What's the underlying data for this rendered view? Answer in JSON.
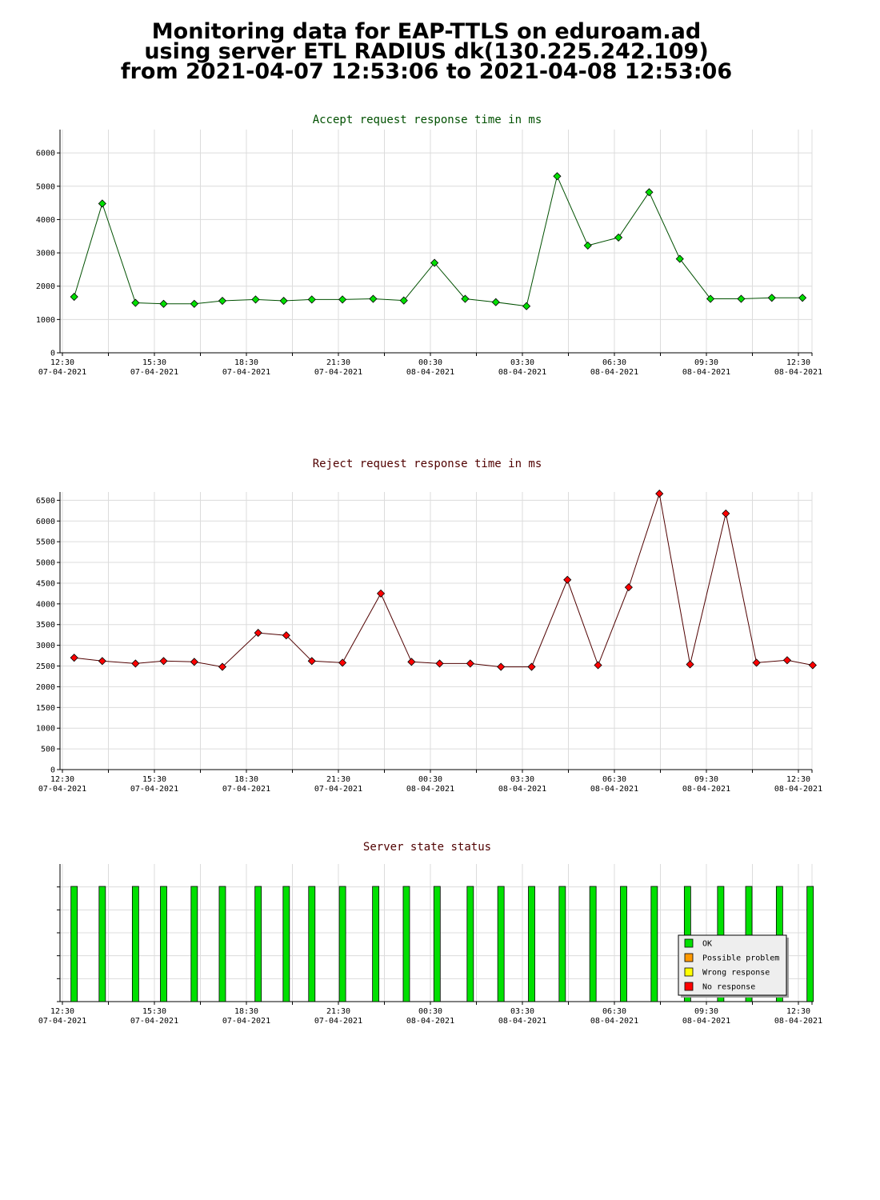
{
  "header": {
    "line1": "Monitoring data for EAP-TTLS on eduroam.ad",
    "line2": "using server ETL RADIUS dk(130.225.242.109)",
    "line3": "from 2021-04-07 12:53:06 to 2021-04-08 12:53:06"
  },
  "x_ticks": [
    {
      "time": "12:30",
      "date": "07-04-2021"
    },
    {
      "time": "15:30",
      "date": "07-04-2021"
    },
    {
      "time": "18:30",
      "date": "07-04-2021"
    },
    {
      "time": "21:30",
      "date": "07-04-2021"
    },
    {
      "time": "00:30",
      "date": "08-04-2021"
    },
    {
      "time": "03:30",
      "date": "08-04-2021"
    },
    {
      "time": "06:30",
      "date": "08-04-2021"
    },
    {
      "time": "09:30",
      "date": "08-04-2021"
    },
    {
      "time": "12:30",
      "date": "08-04-2021"
    }
  ],
  "chart_data": [
    {
      "type": "line",
      "title": "Accept request response time in ms",
      "colors": {
        "title": "#005000",
        "line": "#005000",
        "marker": "#00e000"
      },
      "x": [
        "2021-04-07 12:53",
        "2021-04-07 13:48",
        "2021-04-07 14:53",
        "2021-04-07 15:48",
        "2021-04-07 16:48",
        "2021-04-07 17:43",
        "2021-04-07 18:48",
        "2021-04-07 19:43",
        "2021-04-07 20:38",
        "2021-04-07 21:38",
        "2021-04-07 22:38",
        "2021-04-07 23:38",
        "2021-04-08 00:38",
        "2021-04-08 01:38",
        "2021-04-08 02:38",
        "2021-04-08 03:38",
        "2021-04-08 04:38",
        "2021-04-08 05:38",
        "2021-04-08 06:38",
        "2021-04-08 07:38",
        "2021-04-08 08:38",
        "2021-04-08 09:38",
        "2021-04-08 10:38",
        "2021-04-08 11:38",
        "2021-04-08 12:38"
      ],
      "values": [
        1680,
        4480,
        1500,
        1470,
        1470,
        1560,
        1600,
        1560,
        1600,
        1600,
        1620,
        1570,
        2700,
        1620,
        1520,
        1400,
        5300,
        3220,
        3460,
        4820,
        2820,
        1620,
        1620,
        1650,
        1650
      ],
      "ylim": [
        0,
        6700
      ],
      "y_ticks": [
        0,
        1000,
        2000,
        3000,
        4000,
        5000,
        6000
      ],
      "grid": true
    },
    {
      "type": "line",
      "title": "Reject request response time in ms",
      "colors": {
        "title": "#500000",
        "line": "#500000",
        "marker": "#ff0000"
      },
      "x": [
        "2021-04-07 12:53",
        "2021-04-07 13:48",
        "2021-04-07 14:53",
        "2021-04-07 15:48",
        "2021-04-07 16:48",
        "2021-04-07 17:43",
        "2021-04-07 18:53",
        "2021-04-07 19:48",
        "2021-04-07 20:38",
        "2021-04-07 21:38",
        "2021-04-07 22:53",
        "2021-04-07 23:53",
        "2021-04-08 00:48",
        "2021-04-08 01:48",
        "2021-04-08 02:48",
        "2021-04-08 03:48",
        "2021-04-08 04:58",
        "2021-04-08 05:58",
        "2021-04-08 06:58",
        "2021-04-08 07:58",
        "2021-04-08 08:58",
        "2021-04-08 10:08",
        "2021-04-08 11:08",
        "2021-04-08 12:08",
        "2021-04-08 12:58"
      ],
      "values": [
        2700,
        2620,
        2560,
        2620,
        2600,
        2480,
        3300,
        3240,
        2620,
        2580,
        4250,
        2600,
        2560,
        2560,
        2480,
        2480,
        4580,
        2520,
        4400,
        6660,
        2540,
        6180,
        2580,
        2640,
        2520
      ],
      "ylim": [
        0,
        6700
      ],
      "y_ticks": [
        0,
        500,
        1000,
        1500,
        2000,
        2500,
        3000,
        3500,
        4000,
        4500,
        5000,
        5500,
        6000,
        6500
      ],
      "grid": true
    },
    {
      "type": "bar",
      "title": "Server state status",
      "colors": {
        "title": "#500000"
      },
      "x": [
        "2021-04-07 12:53",
        "2021-04-07 13:48",
        "2021-04-07 14:53",
        "2021-04-07 15:48",
        "2021-04-07 16:48",
        "2021-04-07 17:43",
        "2021-04-07 18:53",
        "2021-04-07 19:48",
        "2021-04-07 20:38",
        "2021-04-07 21:38",
        "2021-04-07 22:43",
        "2021-04-07 23:43",
        "2021-04-08 00:43",
        "2021-04-08 01:48",
        "2021-04-08 02:48",
        "2021-04-08 03:48",
        "2021-04-08 04:48",
        "2021-04-08 05:48",
        "2021-04-08 06:48",
        "2021-04-08 07:48",
        "2021-04-08 08:53",
        "2021-04-08 09:58",
        "2021-04-08 10:53",
        "2021-04-08 11:53",
        "2021-04-08 12:53"
      ],
      "states": [
        "OK",
        "OK",
        "OK",
        "OK",
        "OK",
        "OK",
        "OK",
        "OK",
        "OK",
        "OK",
        "OK",
        "OK",
        "OK",
        "OK",
        "OK",
        "OK",
        "OK",
        "OK",
        "OK",
        "OK",
        "OK",
        "OK",
        "OK",
        "OK",
        "OK"
      ],
      "legend": [
        {
          "label": "OK",
          "color": "#00e000"
        },
        {
          "label": "Possible problem",
          "color": "#ff9900"
        },
        {
          "label": "Wrong response",
          "color": "#ffff00"
        },
        {
          "label": "No response",
          "color": "#ff0000"
        }
      ],
      "legend_position": "bottom-right",
      "grid": true
    }
  ]
}
